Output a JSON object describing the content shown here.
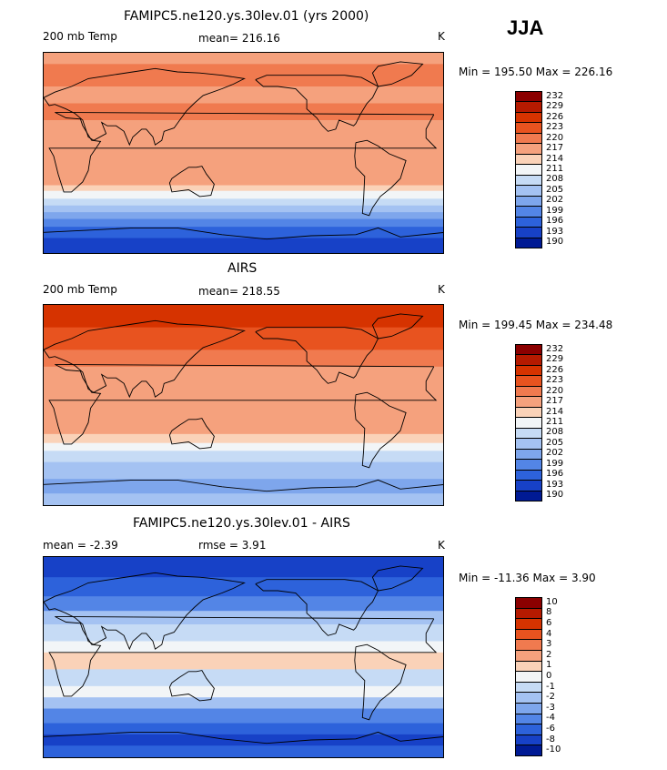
{
  "season": "JJA",
  "chart_data": [
    {
      "type": "heatmap",
      "title": "FAMIPC5.ne120.ys.30lev.01 (yrs 2000)",
      "left_label": "200 mb Temp",
      "center_label": "mean= 216.16",
      "right_label": "K",
      "minmax": "Min = 195.50 Max = 226.16",
      "colorbar": {
        "ticks": [
          "232",
          "229",
          "226",
          "223",
          "220",
          "217",
          "214",
          "211",
          "208",
          "205",
          "202",
          "199",
          "196",
          "193",
          "190"
        ],
        "colors": [
          "#8b0000",
          "#b51a00",
          "#d63300",
          "#e8531f",
          "#f07a4f",
          "#f5a17d",
          "#fad2b8",
          "#f2f5f7",
          "#c6dbf5",
          "#a4c2f2",
          "#7ea6ec",
          "#5385e6",
          "#2d62db",
          "#1741c7",
          "#001a94"
        ]
      },
      "lat_bands": [
        {
          "lat": 90,
          "color": "#f5a17d"
        },
        {
          "lat": 80,
          "color": "#f07a4f"
        },
        {
          "lat": 60,
          "color": "#f5a17d"
        },
        {
          "lat": 45,
          "color": "#f07a4f"
        },
        {
          "lat": 30,
          "color": "#f5a17d"
        },
        {
          "lat": -28,
          "color": "#fad2b8"
        },
        {
          "lat": -33,
          "color": "#f2f5f7"
        },
        {
          "lat": -40,
          "color": "#c6dbf5"
        },
        {
          "lat": -46,
          "color": "#a4c2f2"
        },
        {
          "lat": -52,
          "color": "#7ea6ec"
        },
        {
          "lat": -58,
          "color": "#5385e6"
        },
        {
          "lat": -65,
          "color": "#2d62db"
        },
        {
          "lat": -75,
          "color": "#1741c7"
        }
      ]
    },
    {
      "type": "heatmap",
      "title": "AIRS",
      "left_label": "200 mb Temp",
      "center_label": "mean= 218.55",
      "right_label": "K",
      "minmax": "Min = 199.45 Max = 234.48",
      "colorbar": {
        "ticks": [
          "232",
          "229",
          "226",
          "223",
          "220",
          "217",
          "214",
          "211",
          "208",
          "205",
          "202",
          "199",
          "196",
          "193",
          "190"
        ],
        "colors": [
          "#8b0000",
          "#b51a00",
          "#d63300",
          "#e8531f",
          "#f07a4f",
          "#f5a17d",
          "#fad2b8",
          "#f2f5f7",
          "#c6dbf5",
          "#a4c2f2",
          "#7ea6ec",
          "#5385e6",
          "#2d62db",
          "#1741c7",
          "#001a94"
        ]
      },
      "lat_bands": [
        {
          "lat": 90,
          "color": "#d63300"
        },
        {
          "lat": 70,
          "color": "#e8531f"
        },
        {
          "lat": 50,
          "color": "#f07a4f"
        },
        {
          "lat": 35,
          "color": "#f5a17d"
        },
        {
          "lat": -25,
          "color": "#fad2b8"
        },
        {
          "lat": -33,
          "color": "#f2f5f7"
        },
        {
          "lat": -40,
          "color": "#c6dbf5"
        },
        {
          "lat": -50,
          "color": "#a4c2f2"
        },
        {
          "lat": -65,
          "color": "#7ea6ec"
        },
        {
          "lat": -78,
          "color": "#a4c2f2"
        }
      ]
    },
    {
      "type": "heatmap",
      "title": "FAMIPC5.ne120.ys.30lev.01 - AIRS",
      "left_label": "mean =   -2.39",
      "center_label": "rmse =    3.91",
      "right_label": "K",
      "minmax": "Min = -11.36 Max =    3.90",
      "colorbar": {
        "ticks": [
          "10",
          "8",
          "6",
          "4",
          "3",
          "2",
          "1",
          "0",
          "-1",
          "-2",
          "-3",
          "-4",
          "-6",
          "-8",
          "-10"
        ],
        "colors": [
          "#8b0000",
          "#b51a00",
          "#d63300",
          "#e8531f",
          "#f07a4f",
          "#f5a17d",
          "#fad2b8",
          "#f2f5f7",
          "#c6dbf5",
          "#a4c2f2",
          "#7ea6ec",
          "#5385e6",
          "#2d62db",
          "#1741c7",
          "#001a94"
        ]
      },
      "lat_bands": [
        {
          "lat": 90,
          "color": "#1741c7"
        },
        {
          "lat": 72,
          "color": "#2d62db"
        },
        {
          "lat": 55,
          "color": "#5385e6"
        },
        {
          "lat": 42,
          "color": "#a4c2f2"
        },
        {
          "lat": 30,
          "color": "#c6dbf5"
        },
        {
          "lat": 15,
          "color": "#f2f5f7"
        },
        {
          "lat": 5,
          "color": "#fad2b8"
        },
        {
          "lat": -10,
          "color": "#c6dbf5"
        },
        {
          "lat": -25,
          "color": "#f2f5f7"
        },
        {
          "lat": -35,
          "color": "#a4c2f2"
        },
        {
          "lat": -45,
          "color": "#5385e6"
        },
        {
          "lat": -58,
          "color": "#2d62db"
        },
        {
          "lat": -68,
          "color": "#1741c7"
        },
        {
          "lat": -78,
          "color": "#2d62db"
        }
      ]
    }
  ]
}
